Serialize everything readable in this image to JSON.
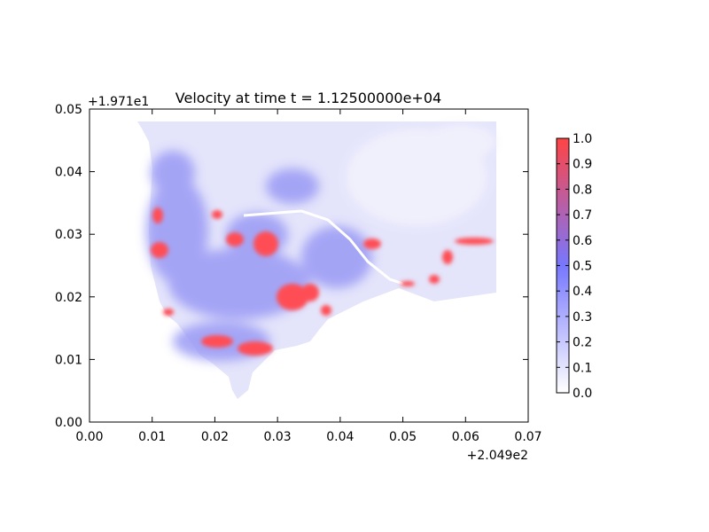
{
  "chart_data": {
    "type": "heatmap",
    "title": "Velocity at time t = 1.12500000e+04",
    "xlabel": "",
    "ylabel": "",
    "xlim": [
      0.0,
      0.07
    ],
    "ylim": [
      0.0,
      0.05
    ],
    "x_ticks": [
      "0.00",
      "0.01",
      "0.02",
      "0.03",
      "0.04",
      "0.05",
      "0.06",
      "0.07"
    ],
    "y_ticks": [
      "0.00",
      "0.01",
      "0.02",
      "0.03",
      "0.04",
      "0.05"
    ],
    "x_offset": "+2.049e2",
    "y_offset": "+1.971e1",
    "colorbar": {
      "min": 0.0,
      "max": 1.0,
      "ticks": [
        "0.0",
        "0.1",
        "0.2",
        "0.3",
        "0.4",
        "0.5",
        "0.6",
        "0.7",
        "0.8",
        "0.9",
        "1.0"
      ],
      "colors": [
        "#ffffff",
        "#7777ff",
        "#ff4444"
      ]
    },
    "grid": false,
    "high_velocity_regions": [
      {
        "x": 0.0105,
        "y": 0.0275,
        "value": 1.0
      },
      {
        "x": 0.0105,
        "y": 0.0335,
        "value": 1.0
      },
      {
        "x": 0.0245,
        "y": 0.0125,
        "value": 1.0
      },
      {
        "x": 0.0285,
        "y": 0.0115,
        "value": 1.0
      },
      {
        "x": 0.0305,
        "y": 0.0205,
        "value": 1.0
      },
      {
        "x": 0.0335,
        "y": 0.0225,
        "value": 1.0
      },
      {
        "x": 0.0275,
        "y": 0.0295,
        "value": 1.0
      },
      {
        "x": 0.0245,
        "y": 0.0305,
        "value": 1.0
      },
      {
        "x": 0.0375,
        "y": 0.0185,
        "value": 1.0
      },
      {
        "x": 0.0405,
        "y": 0.0285,
        "value": 1.0
      },
      {
        "x": 0.0605,
        "y": 0.0285,
        "value": 1.0
      },
      {
        "x": 0.0545,
        "y": 0.0225,
        "value": 1.0
      }
    ]
  }
}
